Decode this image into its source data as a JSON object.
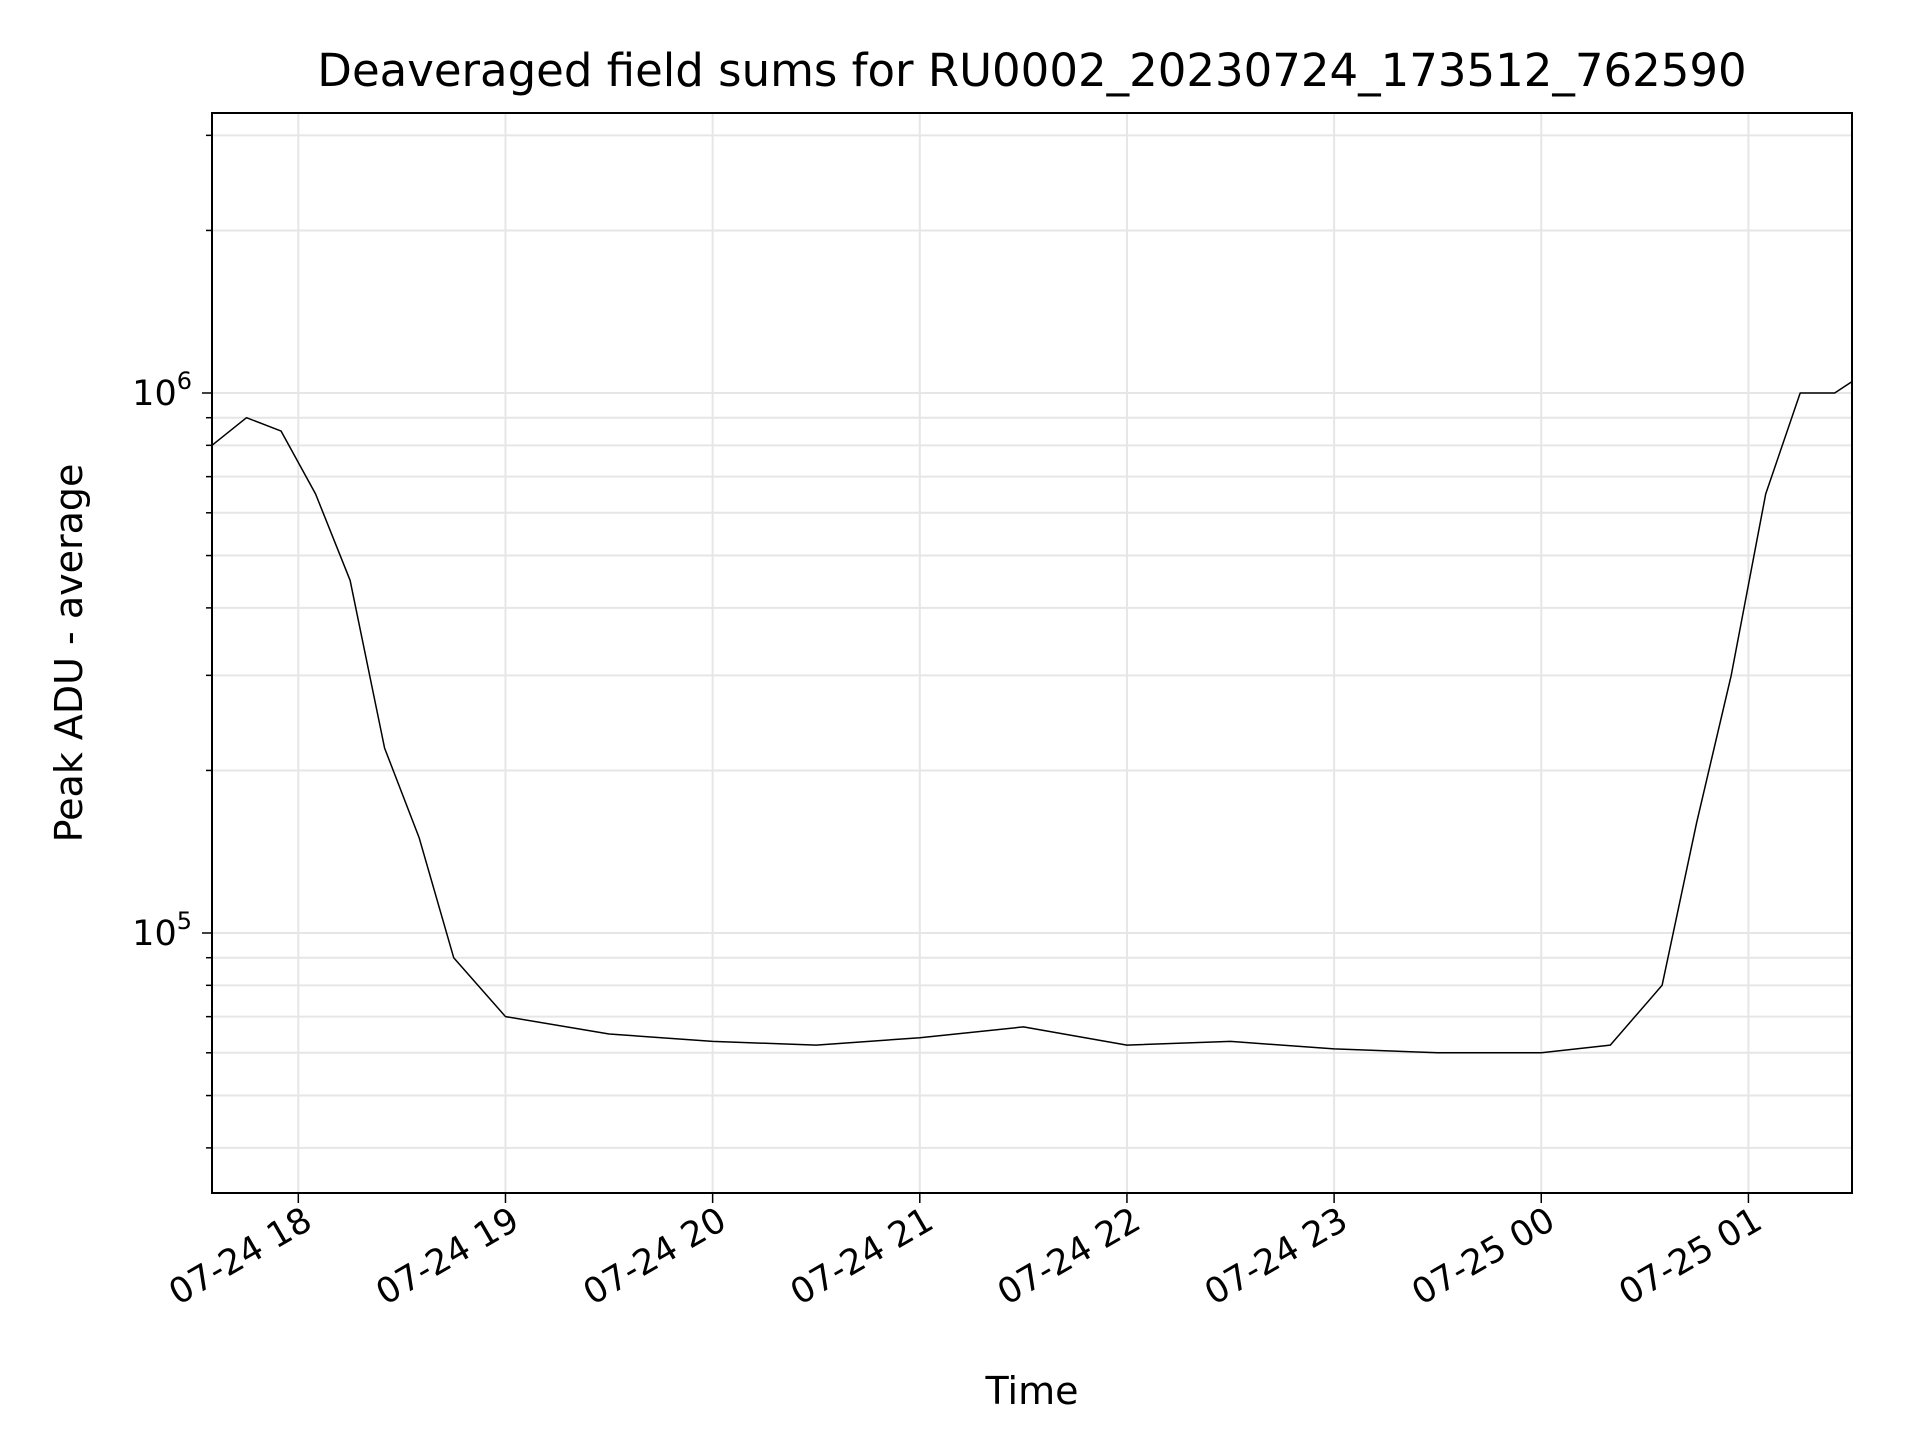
{
  "chart_data": {
    "type": "line",
    "title": "Deaveraged field sums for RU0002_20230724_173512_762590",
    "xlabel": "Time",
    "ylabel": "Peak ADU - average",
    "y_scale": "log",
    "ylim": [
      33000,
      3300000
    ],
    "xlim": [
      "2023-07-24 17:35",
      "2023-07-25 01:30"
    ],
    "grid": true,
    "x_ticks": [
      {
        "value": "2023-07-24 18:00",
        "label": "07-24 18"
      },
      {
        "value": "2023-07-24 19:00",
        "label": "07-24 19"
      },
      {
        "value": "2023-07-24 20:00",
        "label": "07-24 20"
      },
      {
        "value": "2023-07-24 21:00",
        "label": "07-24 21"
      },
      {
        "value": "2023-07-24 22:00",
        "label": "07-24 22"
      },
      {
        "value": "2023-07-24 23:00",
        "label": "07-24 23"
      },
      {
        "value": "2023-07-25 00:00",
        "label": "07-25 00"
      },
      {
        "value": "2023-07-25 01:00",
        "label": "07-25 01"
      }
    ],
    "y_ticks": [
      {
        "value": 100000,
        "base": "10",
        "exp": "5"
      },
      {
        "value": 1000000,
        "base": "10",
        "exp": "6"
      }
    ],
    "line_color": "#000000",
    "series": [
      {
        "x": [
          "2023-07-24 17:35",
          "2023-07-24 17:45",
          "2023-07-24 17:55",
          "2023-07-24 18:05",
          "2023-07-24 18:15",
          "2023-07-24 18:25",
          "2023-07-24 18:35",
          "2023-07-24 18:45",
          "2023-07-24 19:00",
          "2023-07-24 19:30",
          "2023-07-24 20:00",
          "2023-07-24 20:30",
          "2023-07-24 21:00",
          "2023-07-24 21:30",
          "2023-07-24 22:00",
          "2023-07-24 22:30",
          "2023-07-24 23:00",
          "2023-07-24 23:30",
          "2023-07-25 00:00",
          "2023-07-25 00:20",
          "2023-07-25 00:35",
          "2023-07-25 00:45",
          "2023-07-25 00:55",
          "2023-07-25 01:05",
          "2023-07-25 01:15",
          "2023-07-25 01:25",
          "2023-07-25 01:30"
        ],
        "y": [
          800000,
          900000,
          850000,
          650000,
          450000,
          220000,
          150000,
          90000,
          70000,
          65000,
          63000,
          62000,
          64000,
          67000,
          62000,
          63000,
          61000,
          60000,
          60000,
          62000,
          80000,
          160000,
          300000,
          650000,
          1000000,
          1000000,
          1050000
        ]
      }
    ]
  }
}
